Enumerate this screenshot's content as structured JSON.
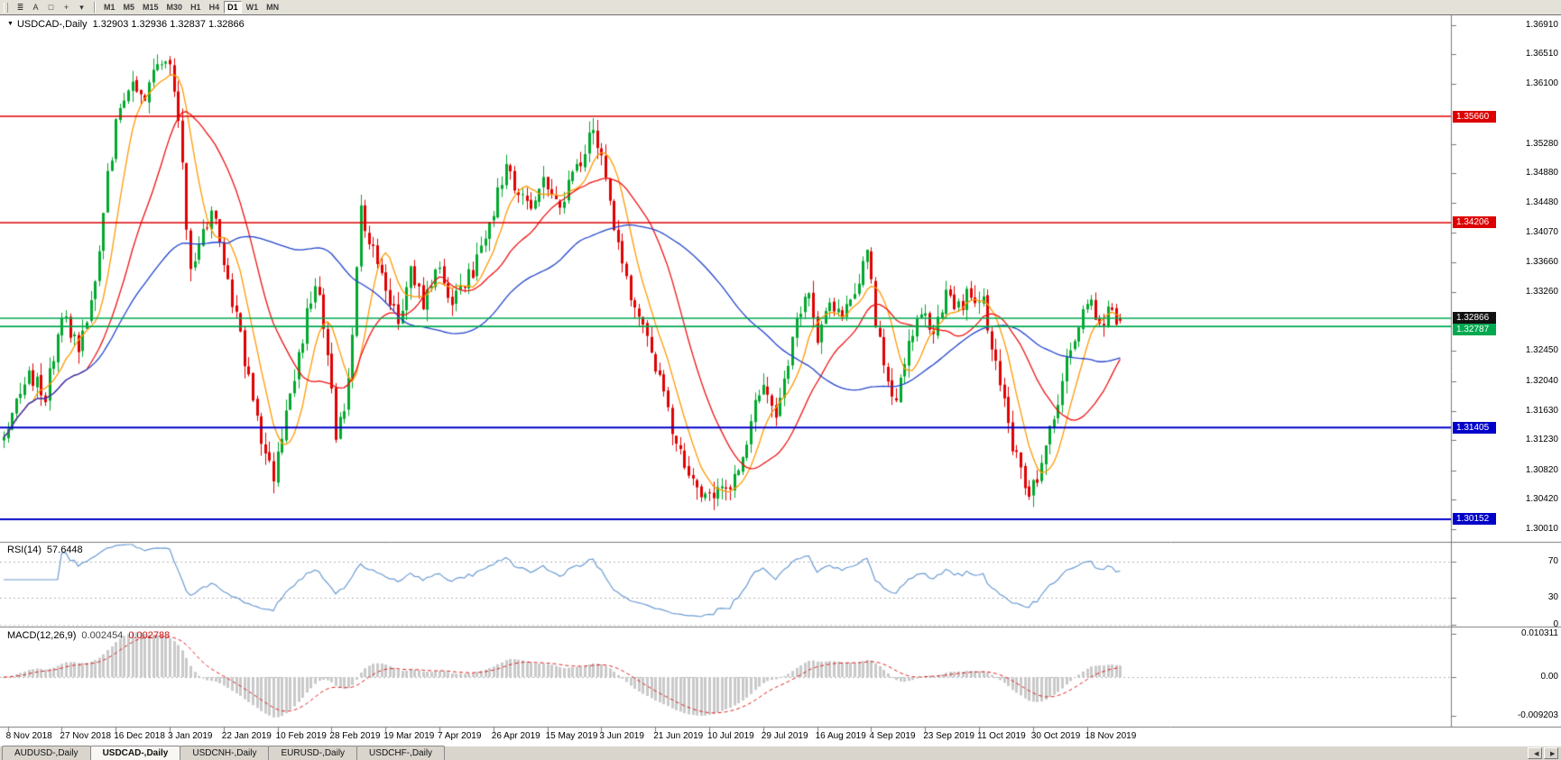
{
  "toolbar": {
    "tools": [
      {
        "name": "menu-icon",
        "glyph": "≣"
      },
      {
        "name": "text-a-icon",
        "glyph": "A"
      },
      {
        "name": "shapes-icon",
        "glyph": "□"
      },
      {
        "name": "crosshair-icon",
        "glyph": "+"
      },
      {
        "name": "caret-down-icon",
        "glyph": "▾"
      }
    ],
    "timeframes": [
      "M1",
      "M5",
      "M15",
      "M30",
      "H1",
      "H4",
      "D1",
      "W1",
      "MN"
    ],
    "active_timeframe": "D1"
  },
  "chart": {
    "title_marker": "▼",
    "symbol_title": "USDCAD-,Daily",
    "ohlc_readout": "1.32903 1.32936 1.32837 1.32866",
    "price_ticks": [
      "1.36910",
      "1.36510",
      "1.36100",
      "1.35280",
      "1.34880",
      "1.34480",
      "1.34070",
      "1.33660",
      "1.33260",
      "1.32450",
      "1.32040",
      "1.31630",
      "1.31230",
      "1.30820",
      "1.30420",
      "1.30010"
    ],
    "badges": [
      {
        "value": "1.35660",
        "price": 1.3566,
        "color": "#dd0000"
      },
      {
        "value": "1.34206",
        "price": 1.34206,
        "color": "#dd0000"
      },
      {
        "value": "1.32866",
        "price": 1.32866,
        "color": "#111111"
      },
      {
        "value": "1.32787",
        "price": 1.32787,
        "color": "#00a84f"
      },
      {
        "value": "1.31405",
        "price": 1.31405,
        "color": "#0000c8"
      },
      {
        "value": "1.30152",
        "price": 1.30152,
        "color": "#0000c8"
      }
    ]
  },
  "rsi_panel": {
    "label": "RSI(14)",
    "value": "57.6448",
    "axis": [
      "70",
      "30",
      "0"
    ]
  },
  "macd_panel": {
    "label": "MACD(12,26,9)",
    "value_main": "0.002454",
    "value_signal": "0.002788",
    "axis": [
      "0.010311",
      "0.00",
      "-0.009203"
    ]
  },
  "time_axis": [
    "8 Nov 2018",
    "27 Nov 2018",
    "16 Dec 2018",
    "3 Jan 2019",
    "22 Jan 2019",
    "10 Feb 2019",
    "28 Feb 2019",
    "19 Mar 2019",
    "7 Apr 2019",
    "26 Apr 2019",
    "15 May 2019",
    "3 Jun 2019",
    "21 Jun 2019",
    "10 Jul 2019",
    "29 Jul 2019",
    "16 Aug 2019",
    "4 Sep 2019",
    "23 Sep 2019",
    "11 Oct 2019",
    "30 Oct 2019",
    "18 Nov 2019"
  ],
  "tab_bar": {
    "tabs": [
      "AUDUSD-,Daily",
      "USDCAD-,Daily",
      "USDCNH-,Daily",
      "EURUSD-,Daily",
      "USDCHF-,Daily"
    ],
    "active": "USDCAD-,Daily",
    "scroll_left": "◀",
    "scroll_right": "▶"
  },
  "chart_data": {
    "type": "candlestick",
    "symbol": "USDCAD",
    "timeframe": "Daily",
    "bars": 270,
    "price_range": [
      1.299,
      1.3705
    ],
    "last": {
      "open": 1.32903,
      "high": 1.32936,
      "low": 1.32837,
      "close": 1.32866
    },
    "candle_colors": {
      "up": "#00a82d",
      "down": "#e00000"
    },
    "horizontal_lines": [
      {
        "price": 1.3566,
        "color": "#dd0000",
        "width": 1.6
      },
      {
        "price": 1.34206,
        "color": "#dd0000",
        "width": 1.6
      },
      {
        "price": 1.329,
        "color": "#00a84f",
        "width": 1.6
      },
      {
        "price": 1.32787,
        "color": "#00a84f",
        "width": 1.6
      },
      {
        "price": 1.31405,
        "color": "#0000c8",
        "width": 2
      },
      {
        "price": 1.30152,
        "color": "#0000c8",
        "width": 2
      }
    ],
    "moving_averages": [
      {
        "period": 8,
        "color": "#ff9900"
      },
      {
        "period": 21,
        "color": "#ee1111"
      },
      {
        "period": 55,
        "color": "#2244cc"
      }
    ],
    "indicators": {
      "rsi": {
        "period": 14,
        "last": 57.6448,
        "levels": [
          70,
          30,
          0
        ],
        "color": "#6b9bd2"
      },
      "macd": {
        "fast": 12,
        "slow": 26,
        "signal": 9,
        "last_main": 0.002454,
        "last_signal": 0.002788,
        "range": [
          -0.009203,
          0.010311
        ],
        "histogram_color": "#c9c9c9",
        "signal_color": "#dd2222"
      }
    },
    "close_path": [
      [
        0,
        1.3125
      ],
      [
        6,
        1.3215
      ],
      [
        10,
        1.3185
      ],
      [
        14,
        1.33
      ],
      [
        18,
        1.325
      ],
      [
        22,
        1.333
      ],
      [
        25,
        1.348
      ],
      [
        28,
        1.359
      ],
      [
        31,
        1.362
      ],
      [
        34,
        1.3595
      ],
      [
        37,
        1.365
      ],
      [
        39,
        1.3645
      ],
      [
        41,
        1.3605
      ],
      [
        43,
        1.35
      ],
      [
        45,
        1.3345
      ],
      [
        48,
        1.3405
      ],
      [
        50,
        1.3445
      ],
      [
        53,
        1.3365
      ],
      [
        56,
        1.329
      ],
      [
        59,
        1.321
      ],
      [
        62,
        1.312
      ],
      [
        65,
        1.3078
      ],
      [
        68,
        1.316
      ],
      [
        71,
        1.324
      ],
      [
        74,
        1.332
      ],
      [
        76,
        1.333
      ],
      [
        78,
        1.323
      ],
      [
        80,
        1.3135
      ],
      [
        82,
        1.3155
      ],
      [
        84,
        1.328
      ],
      [
        86,
        1.344
      ],
      [
        88,
        1.339
      ],
      [
        92,
        1.3335
      ],
      [
        95,
        1.329
      ],
      [
        98,
        1.3355
      ],
      [
        101,
        1.331
      ],
      [
        105,
        1.336
      ],
      [
        108,
        1.3315
      ],
      [
        112,
        1.3345
      ],
      [
        116,
        1.3395
      ],
      [
        119,
        1.346
      ],
      [
        121,
        1.3495
      ],
      [
        124,
        1.3455
      ],
      [
        127,
        1.344
      ],
      [
        130,
        1.348
      ],
      [
        133,
        1.3445
      ],
      [
        136,
        1.347
      ],
      [
        139,
        1.351
      ],
      [
        142,
        1.3555
      ],
      [
        144,
        1.3505
      ],
      [
        147,
        1.342
      ],
      [
        150,
        1.334
      ],
      [
        153,
        1.3285
      ],
      [
        157,
        1.3225
      ],
      [
        160,
        1.316
      ],
      [
        163,
        1.3105
      ],
      [
        166,
        1.3065
      ],
      [
        169,
        1.304
      ],
      [
        172,
        1.3062
      ],
      [
        175,
        1.3046
      ],
      [
        178,
        1.311
      ],
      [
        181,
        1.317
      ],
      [
        183,
        1.3205
      ],
      [
        186,
        1.3165
      ],
      [
        189,
        1.3235
      ],
      [
        192,
        1.33
      ],
      [
        194,
        1.333
      ],
      [
        196,
        1.3265
      ],
      [
        199,
        1.331
      ],
      [
        202,
        1.3285
      ],
      [
        205,
        1.3325
      ],
      [
        208,
        1.338
      ],
      [
        210,
        1.329
      ],
      [
        213,
        1.32
      ],
      [
        215,
        1.3165
      ],
      [
        218,
        1.326
      ],
      [
        221,
        1.33
      ],
      [
        224,
        1.328
      ],
      [
        227,
        1.332
      ],
      [
        230,
        1.3305
      ],
      [
        233,
        1.333
      ],
      [
        236,
        1.331
      ],
      [
        238,
        1.325
      ],
      [
        241,
        1.317
      ],
      [
        244,
        1.3095
      ],
      [
        247,
        1.3052
      ],
      [
        250,
        1.309
      ],
      [
        253,
        1.316
      ],
      [
        256,
        1.323
      ],
      [
        259,
        1.329
      ],
      [
        262,
        1.331
      ],
      [
        264,
        1.328
      ],
      [
        266,
        1.33
      ],
      [
        268,
        1.3292
      ],
      [
        269,
        1.32866
      ]
    ]
  }
}
